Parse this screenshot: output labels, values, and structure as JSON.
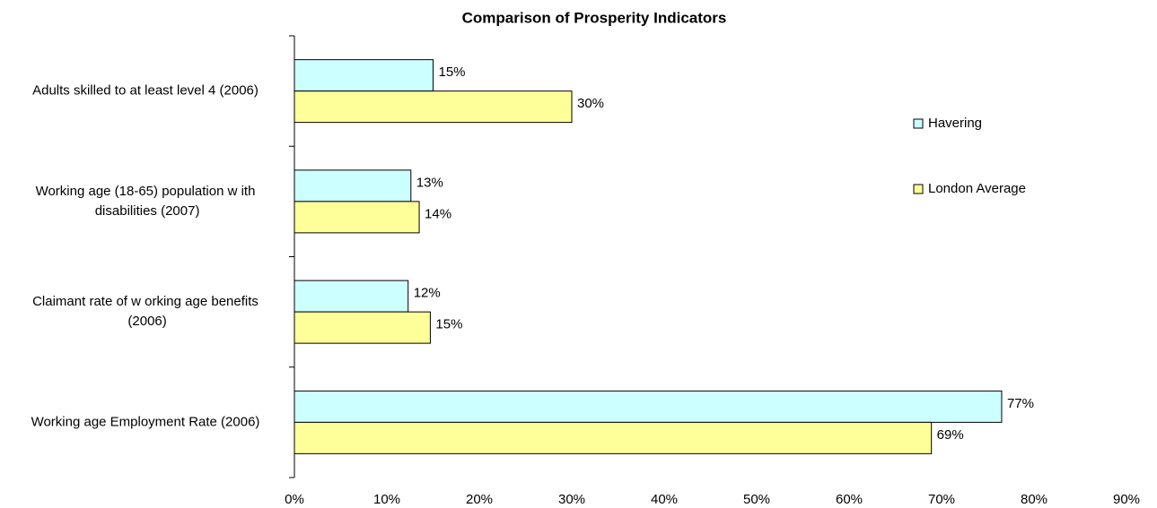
{
  "chart_data": {
    "type": "barh",
    "title": "Comparison of Prosperity Indicators",
    "categories": [
      "Adults skilled to at least level 4 (2006)",
      "Working age (18-65) population w ith disabilities (2007)",
      "Claimant rate of w orking age benefits (2006)",
      "Working age Employment Rate (2006)"
    ],
    "series": [
      {
        "name": "Havering",
        "color": "#ccffff",
        "values": [
          15,
          12.6,
          12.3,
          76.5
        ],
        "value_labels": [
          "15%",
          "13%",
          "12%",
          "77%"
        ]
      },
      {
        "name": "London Average",
        "color": "#ffff99",
        "values": [
          30,
          13.5,
          14.7,
          68.9
        ],
        "value_labels": [
          "30%",
          "14%",
          "15%",
          "69%"
        ]
      }
    ],
    "xlim": [
      0,
      90
    ],
    "xticks": [
      {
        "value": 0,
        "label": "0%"
      },
      {
        "value": 10,
        "label": "10%"
      },
      {
        "value": 20,
        "label": "20%"
      },
      {
        "value": 30,
        "label": "30%"
      },
      {
        "value": 40,
        "label": "40%"
      },
      {
        "value": 50,
        "label": "50%"
      },
      {
        "value": 60,
        "label": "60%"
      },
      {
        "value": 70,
        "label": "70%"
      },
      {
        "value": 80,
        "label": "80%"
      },
      {
        "value": 90,
        "label": "90%"
      }
    ],
    "grid": false,
    "legend": "right"
  }
}
